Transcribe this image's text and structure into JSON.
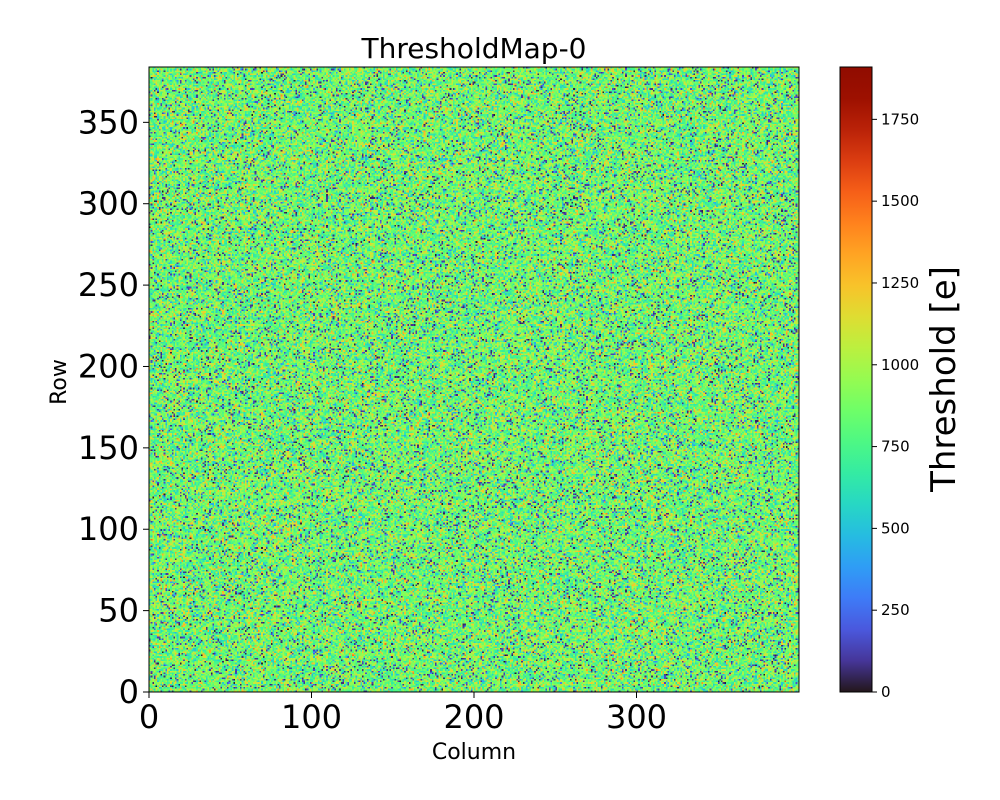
{
  "chart_data": {
    "type": "heatmap",
    "title": "ThresholdMap-0",
    "xlabel": "Column",
    "ylabel": "Row",
    "n_columns": 400,
    "n_rows": 384,
    "xlim": [
      0,
      400
    ],
    "ylim": [
      0,
      384
    ],
    "x_ticks": [
      0,
      100,
      200,
      300
    ],
    "y_ticks": [
      0,
      50,
      100,
      150,
      200,
      250,
      300,
      350
    ],
    "colormap": "turbo",
    "colorbar": {
      "label": "Threshold [e]",
      "range": [
        0,
        1910
      ],
      "ticks": [
        0,
        250,
        500,
        750,
        1000,
        1250,
        1500,
        1750
      ]
    },
    "value_distribution": {
      "dominant_range": [
        550,
        1150
      ],
      "typical_value": 850,
      "low_outliers_near": 100,
      "low_outlier_fraction": 0.08,
      "high_values_near": 1250
    }
  }
}
